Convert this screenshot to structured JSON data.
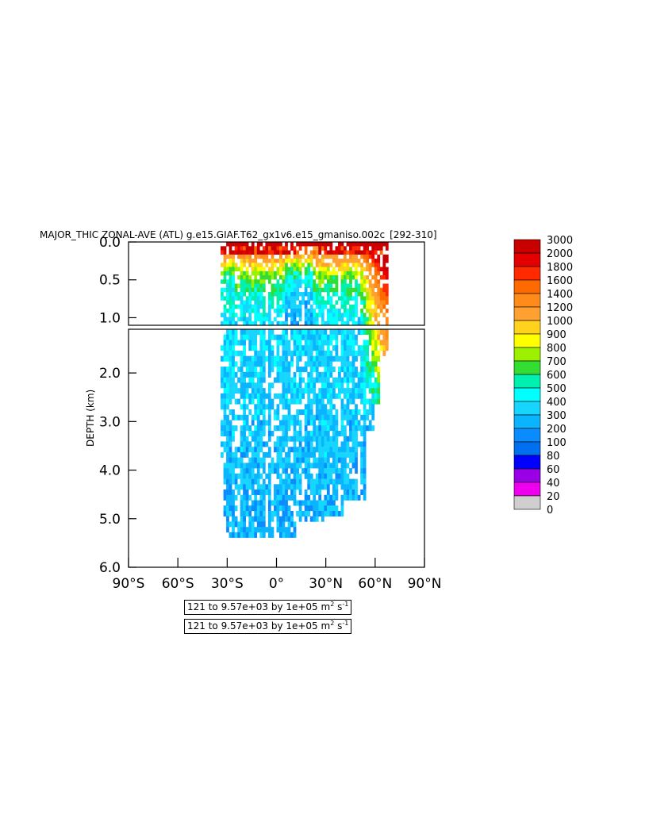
{
  "chart_data": {
    "type": "heatmap",
    "title": "MAJOR_THIC ZONAL-AVE (ATL) g.e15.GIAF.T62_gx1v6.e15_gmaniso.002c",
    "title_suffix": "[292-310]",
    "ylabel": "DEPTH (km)",
    "xlim": [
      -90,
      90
    ],
    "x_ticks": [
      -90,
      -60,
      -30,
      0,
      30,
      60,
      90
    ],
    "x_tick_labels": [
      "90°S",
      "60°S",
      "30°S",
      "0°",
      "30°N",
      "60°N",
      "90°N"
    ],
    "upper_panel": {
      "ylim": [
        0.0,
        1.1
      ],
      "y_ticks": [
        0.0,
        0.5,
        1.0
      ],
      "y_tick_labels": [
        "0.0",
        "0.5",
        "1.0"
      ]
    },
    "lower_panel": {
      "ylim": [
        1.1,
        6.0
      ],
      "y_ticks": [
        2.0,
        3.0,
        4.0,
        5.0,
        6.0
      ],
      "y_tick_labels": [
        "2.0",
        "3.0",
        "4.0",
        "5.0",
        "6.0"
      ]
    },
    "data_extent": {
      "lat": [
        -34,
        67
      ],
      "max_depth_km": 5.4
    },
    "colorbar": {
      "levels": [
        "3000",
        "2000",
        "1800",
        "1600",
        "1400",
        "1200",
        "1000",
        "900",
        "800",
        "700",
        "600",
        "500",
        "400",
        "300",
        "200",
        "100",
        "80",
        "60",
        "40",
        "20",
        "0"
      ],
      "colors": [
        "#c80000",
        "#e40000",
        "#ff2a00",
        "#ff6a00",
        "#ff8c1a",
        "#ffa030",
        "#ffd21e",
        "#ffff00",
        "#9cf000",
        "#33dd33",
        "#00f0b0",
        "#00ffff",
        "#16d6ff",
        "#0ab4ff",
        "#0a8cff",
        "#0070f0",
        "#0000ff",
        "#9a00e6",
        "#ee00ee",
        "#cfcfcf",
        "#7f7f7f"
      ]
    },
    "contour_info": [
      {
        "text": "121 to 9.57e+03 by 1e+05 m",
        "sup1": "2",
        "mid": " s",
        "sup2": "-1"
      },
      {
        "text": "121 to 9.57e+03 by 1e+05 m",
        "sup1": "2",
        "mid": " s",
        "sup2": "-1"
      }
    ]
  }
}
